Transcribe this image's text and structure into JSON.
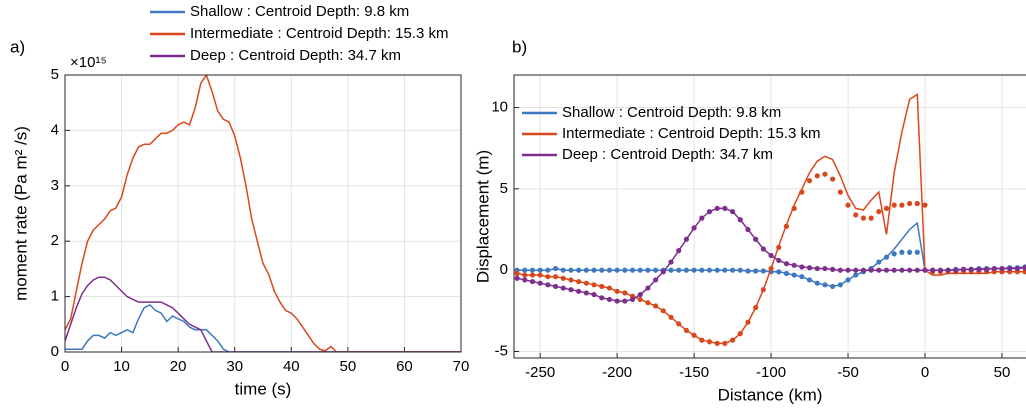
{
  "chart_data": [
    {
      "type": "line",
      "title": "a)",
      "xlabel": "time (s)",
      "ylabel": "moment rate (Pa m² /s)",
      "y_multiplier": "×10¹⁵",
      "legend": "outside-top",
      "grid": true,
      "xlim": [
        0,
        70
      ],
      "xticks": [
        0,
        10,
        20,
        30,
        40,
        50,
        60,
        70
      ],
      "ylim": [
        0,
        5
      ],
      "yticks": [
        0,
        1,
        2,
        3,
        4,
        5
      ],
      "x": [
        0,
        1,
        2,
        3,
        4,
        5,
        6,
        7,
        8,
        9,
        10,
        11,
        12,
        13,
        14,
        15,
        16,
        17,
        18,
        19,
        20,
        21,
        22,
        23,
        24,
        25,
        26,
        27,
        28,
        29,
        30,
        31,
        32,
        33,
        34,
        35,
        36,
        37,
        38,
        39,
        40,
        41,
        42,
        43,
        44,
        45,
        46,
        47,
        48,
        50,
        55,
        60,
        65,
        70
      ],
      "series": [
        {
          "name": "Shallow : Centroid Depth: 9.8 km",
          "color": "#3d78c0",
          "values": [
            0.05,
            0.05,
            0.05,
            0.05,
            0.2,
            0.3,
            0.3,
            0.25,
            0.35,
            0.3,
            0.35,
            0.4,
            0.35,
            0.6,
            0.8,
            0.85,
            0.75,
            0.7,
            0.55,
            0.65,
            0.6,
            0.55,
            0.45,
            0.4,
            0.4,
            0.4,
            0.3,
            0.2,
            0.05,
            0,
            0,
            0,
            0,
            0,
            0,
            0,
            0,
            0,
            0,
            0,
            0,
            0,
            0,
            0,
            0,
            0,
            0,
            0,
            0,
            0,
            0,
            0,
            0,
            0
          ]
        },
        {
          "name": "Intermediate : Centroid Depth: 15.3 km",
          "color": "#d9481c",
          "values": [
            0.4,
            0.6,
            1.1,
            1.6,
            2.0,
            2.2,
            2.3,
            2.4,
            2.55,
            2.6,
            2.8,
            3.2,
            3.5,
            3.7,
            3.75,
            3.75,
            3.85,
            3.95,
            3.95,
            4.0,
            4.1,
            4.15,
            4.1,
            4.4,
            4.85,
            5.0,
            4.7,
            4.35,
            4.2,
            4.15,
            3.9,
            3.5,
            3.0,
            2.4,
            2.0,
            1.6,
            1.4,
            1.1,
            0.9,
            0.75,
            0.7,
            0.6,
            0.45,
            0.3,
            0.15,
            0.05,
            0.02,
            0.1,
            0,
            0,
            0,
            0,
            0,
            0
          ]
        },
        {
          "name": "Deep : Centroid Depth: 34.7 km",
          "color": "#7e2f8e",
          "values": [
            0.2,
            0.5,
            0.8,
            1.05,
            1.2,
            1.3,
            1.35,
            1.35,
            1.3,
            1.2,
            1.1,
            1.0,
            0.95,
            0.9,
            0.9,
            0.9,
            0.9,
            0.9,
            0.85,
            0.8,
            0.7,
            0.6,
            0.5,
            0.45,
            0.4,
            0.2,
            0,
            0,
            0,
            0,
            0,
            0,
            0,
            0,
            0,
            0,
            0,
            0,
            0,
            0,
            0,
            0,
            0,
            0,
            0,
            0,
            0,
            0,
            0,
            0,
            0,
            0,
            0,
            0
          ]
        }
      ]
    },
    {
      "type": "line",
      "title": "b)",
      "xlabel": "Distance (km)",
      "ylabel": "Displacement (m)",
      "legend": "upper-left",
      "grid": true,
      "xlim": [
        -267,
        89
      ],
      "xticks": [
        -250,
        -200,
        -150,
        -100,
        -50,
        0,
        50
      ],
      "ylim": [
        -5.4,
        12
      ],
      "yticks": [
        -5,
        0,
        5,
        10
      ],
      "x": [
        -265,
        -260,
        -255,
        -250,
        -245,
        -240,
        -235,
        -230,
        -225,
        -220,
        -215,
        -210,
        -205,
        -200,
        -195,
        -190,
        -185,
        -180,
        -175,
        -170,
        -165,
        -160,
        -155,
        -150,
        -145,
        -140,
        -135,
        -130,
        -125,
        -120,
        -115,
        -110,
        -105,
        -100,
        -95,
        -90,
        -85,
        -80,
        -75,
        -70,
        -65,
        -60,
        -55,
        -50,
        -45,
        -40,
        -35,
        -30,
        -25,
        -20,
        -15,
        -10,
        -5,
        0,
        5,
        10,
        15,
        20,
        25,
        30,
        35,
        40,
        45,
        50,
        55,
        60,
        65,
        70
      ],
      "series": [
        {
          "name": "Shallow : Centroid Depth: 9.8 km",
          "color": "#3d78c0",
          "values": [
            0,
            0,
            0,
            0,
            0,
            0.1,
            0,
            0,
            0,
            0,
            0,
            0,
            0,
            0,
            0,
            0,
            0,
            0,
            0,
            0,
            0,
            0,
            0,
            0,
            0,
            0,
            0,
            0,
            0,
            0,
            -0.05,
            -0.05,
            -0.05,
            -0.1,
            -0.1,
            -0.2,
            -0.3,
            -0.4,
            -0.6,
            -0.8,
            -0.9,
            -1.0,
            -0.9,
            -0.6,
            -0.3,
            -0.1,
            0.1,
            0.5,
            0.8,
            1.3,
            1.9,
            2.5,
            2.9,
            0,
            0,
            0,
            0,
            0.05,
            0.05,
            0.05,
            0.1,
            0.1,
            0.1,
            0.1,
            0.15,
            0.15,
            0.2,
            0.2
          ],
          "marker_values": [
            0,
            0,
            0,
            0,
            0,
            0.1,
            0,
            0,
            0,
            0,
            0,
            0,
            0,
            0,
            0,
            0,
            0,
            0,
            0,
            0,
            0,
            0,
            0,
            0,
            0,
            0,
            0,
            0,
            0,
            0,
            -0.05,
            -0.05,
            -0.05,
            -0.1,
            -0.1,
            -0.2,
            -0.3,
            -0.4,
            -0.6,
            -0.8,
            -0.9,
            -1.0,
            -0.9,
            -0.6,
            -0.3,
            -0.1,
            0.1,
            0.5,
            0.8,
            1.0,
            1.1,
            1.1,
            1.1,
            0,
            0,
            0,
            0,
            0.05,
            0.05,
            0.05,
            0.1,
            0.1,
            0.1,
            0.1,
            0.15,
            0.15,
            0.2,
            0.2
          ]
        },
        {
          "name": "Intermediate : Centroid Depth: 15.3 km",
          "color": "#d9481c",
          "values": [
            -0.2,
            -0.3,
            -0.3,
            -0.3,
            -0.4,
            -0.4,
            -0.5,
            -0.6,
            -0.7,
            -0.8,
            -0.9,
            -1.0,
            -1.1,
            -1.3,
            -1.4,
            -1.6,
            -1.8,
            -2.0,
            -2.2,
            -2.5,
            -2.9,
            -3.3,
            -3.7,
            -4.0,
            -4.3,
            -4.4,
            -4.5,
            -4.5,
            -4.3,
            -3.9,
            -3.2,
            -2.3,
            -1.2,
            0.1,
            1.5,
            2.8,
            4.0,
            5.0,
            6.0,
            6.7,
            7.0,
            6.8,
            5.8,
            4.6,
            3.8,
            3.7,
            4.3,
            4.8,
            2.2,
            6.0,
            8.5,
            10.5,
            10.8,
            0,
            -0.3,
            -0.3,
            -0.2,
            -0.2,
            -0.2,
            -0.2,
            -0.2,
            -0.2,
            -0.1,
            -0.1,
            -0.1,
            -0.1,
            -0.1,
            -0.1
          ],
          "marker_values": [
            -0.2,
            -0.3,
            -0.3,
            -0.3,
            -0.4,
            -0.4,
            -0.5,
            -0.6,
            -0.7,
            -0.8,
            -0.9,
            -1.0,
            -1.1,
            -1.3,
            -1.4,
            -1.6,
            -1.8,
            -2.0,
            -2.2,
            -2.5,
            -2.9,
            -3.3,
            -3.7,
            -4.0,
            -4.3,
            -4.4,
            -4.5,
            -4.5,
            -4.3,
            -3.9,
            -3.2,
            -2.3,
            -1.2,
            0.1,
            1.4,
            2.7,
            3.8,
            4.8,
            5.5,
            5.8,
            5.9,
            5.6,
            4.8,
            4.0,
            3.4,
            3.2,
            3.2,
            3.6,
            3.8,
            4.0,
            4.0,
            4.1,
            4.1,
            4.0,
            -0.1,
            -0.1,
            -0.1,
            -0.1,
            -0.1,
            -0.1,
            -0.1,
            -0.1,
            -0.1,
            -0.1,
            -0.1,
            -0.1,
            -0.1,
            -0.1
          ]
        },
        {
          "name": "Deep : Centroid Depth: 34.7 km",
          "color": "#7e2f8e",
          "values": [
            -0.5,
            -0.6,
            -0.7,
            -0.8,
            -0.9,
            -1.0,
            -1.1,
            -1.2,
            -1.3,
            -1.4,
            -1.5,
            -1.7,
            -1.8,
            -1.9,
            -1.9,
            -1.8,
            -1.5,
            -1.1,
            -0.6,
            -0.1,
            0.5,
            1.2,
            1.9,
            2.6,
            3.2,
            3.6,
            3.8,
            3.8,
            3.6,
            3.1,
            2.5,
            1.9,
            1.3,
            0.9,
            0.6,
            0.4,
            0.3,
            0.2,
            0.15,
            0.1,
            0.1,
            0.05,
            0,
            0,
            0,
            0,
            0,
            0,
            0,
            0,
            0,
            0,
            0,
            0,
            0,
            0,
            0,
            0,
            0.05,
            0.05,
            0.05,
            0.05,
            0.1,
            0.1,
            0.1,
            0.1,
            0.15,
            0.15
          ],
          "marker_values": [
            -0.5,
            -0.6,
            -0.7,
            -0.8,
            -0.9,
            -1.0,
            -1.1,
            -1.2,
            -1.3,
            -1.4,
            -1.5,
            -1.7,
            -1.8,
            -1.9,
            -1.9,
            -1.8,
            -1.5,
            -1.1,
            -0.6,
            -0.1,
            0.5,
            1.2,
            1.9,
            2.6,
            3.2,
            3.6,
            3.8,
            3.8,
            3.6,
            3.1,
            2.5,
            1.9,
            1.3,
            0.9,
            0.6,
            0.4,
            0.3,
            0.2,
            0.15,
            0.1,
            0.1,
            0.05,
            0,
            0,
            0,
            0,
            0,
            0,
            0,
            0,
            0,
            0,
            0,
            0,
            0,
            0,
            0,
            0,
            0.05,
            0.05,
            0.05,
            0.05,
            0.1,
            0.1,
            0.1,
            0.1,
            0.15,
            0.15
          ]
        }
      ]
    }
  ]
}
